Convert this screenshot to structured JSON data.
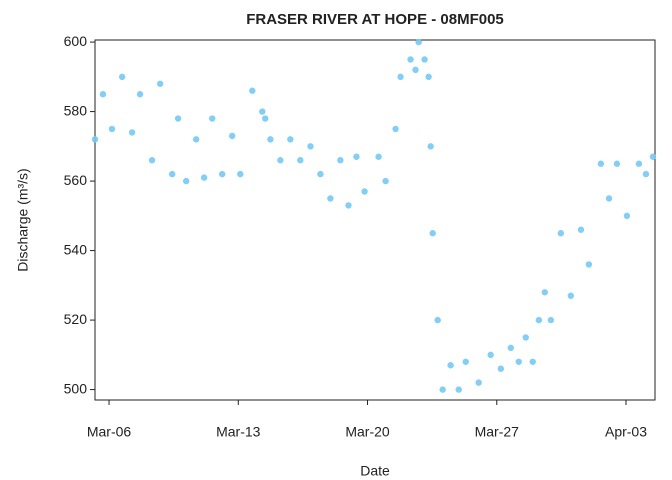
{
  "chart_data": {
    "type": "scatter",
    "title": "FRASER RIVER AT HOPE - 08MF005",
    "x_label": "Date",
    "y_label": "Discharge (m³/s)",
    "series": [
      {
        "name": "Discharge",
        "color": "#74c9f5",
        "x": [
          4.24,
          4.67,
          5.16,
          5.71,
          6.25,
          6.68,
          7.33,
          7.77,
          8.42,
          8.74,
          9.18,
          9.72,
          10.15,
          10.59,
          11.13,
          11.67,
          12.11,
          12.76,
          13.3,
          13.46,
          13.74,
          14.28,
          14.82,
          15.36,
          15.91,
          16.45,
          16.99,
          17.53,
          17.97,
          18.4,
          18.84,
          19.6,
          19.98,
          20.52,
          20.79,
          21.33,
          21.6,
          21.77,
          22.09,
          22.31,
          22.42,
          22.53,
          22.8,
          23.07,
          23.5,
          23.94,
          24.32,
          25.02,
          25.67,
          26.22,
          26.76,
          27.19,
          27.57,
          27.95,
          28.28,
          28.6,
          28.93,
          29.47,
          30.01,
          30.56,
          30.99,
          31.64,
          32.08,
          32.51,
          33.05,
          33.7,
          34.08,
          34.46
        ],
        "values": [
          572,
          585,
          575,
          590,
          574,
          585,
          566,
          588,
          562,
          578,
          560,
          572,
          561,
          578,
          562,
          573,
          562,
          586,
          580,
          578,
          572,
          566,
          572,
          566,
          570,
          562,
          555,
          566,
          553,
          567,
          557,
          567,
          560,
          575,
          590,
          595,
          592,
          600,
          595,
          590,
          570,
          545,
          520,
          500,
          507,
          500,
          508,
          502,
          510,
          506,
          512,
          508,
          515,
          508,
          520,
          528,
          520,
          545,
          527,
          546,
          536,
          565,
          555,
          565,
          550,
          565,
          562,
          567
        ]
      }
    ],
    "xlim": [
      4.24,
      34.57
    ],
    "xticks": [
      {
        "value": 5,
        "label": "Mar-06"
      },
      {
        "value": 12,
        "label": "Mar-13"
      },
      {
        "value": 19,
        "label": "Mar-20"
      },
      {
        "value": 26,
        "label": "Mar-27"
      },
      {
        "value": 33,
        "label": "Apr-03"
      }
    ],
    "ylim": [
      497,
      600.6
    ],
    "yticks": [
      500,
      520,
      540,
      560,
      580,
      600
    ],
    "grid": false
  }
}
